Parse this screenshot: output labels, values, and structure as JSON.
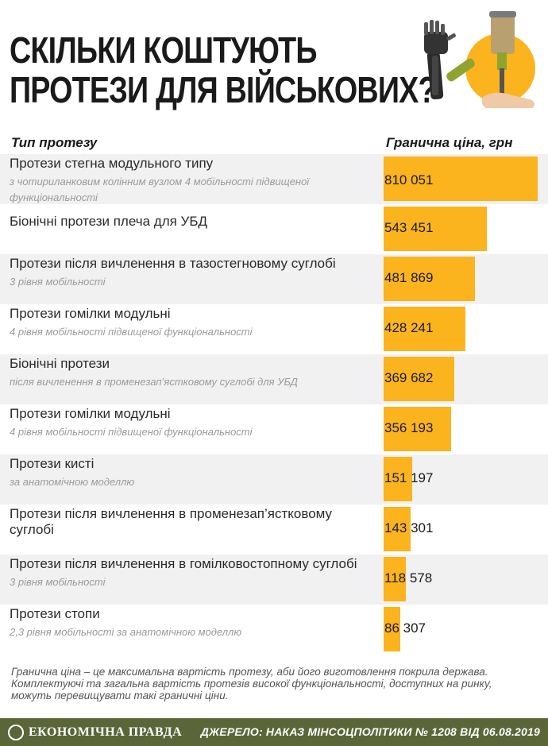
{
  "title_lines": [
    "Скільки коштують",
    "протези для військових?"
  ],
  "table_headers": {
    "type": "Тип протезу",
    "price": "Гранична ціна, грн"
  },
  "colors": {
    "bar": "#fbb41e",
    "footer": "#5a6638",
    "row_shade": "#f1f1f1"
  },
  "chart_data": {
    "type": "bar",
    "orientation": "horizontal",
    "categories": [
      {
        "main": "Протези стегна модульного типу",
        "sub": "з чотириланковим колінним вузлом 4 мобільності підвищеної функціональності"
      },
      {
        "main": "Біонічні протези плеча для УБД",
        "sub": ""
      },
      {
        "main": "Протези після вичленення в тазостегновому суглобі",
        "sub": "3 рівня мобільності"
      },
      {
        "main": "Протези гомілки модульні",
        "sub": "4 рівня мобільності підвищеної функціональності"
      },
      {
        "main": "Біонічні протези",
        "sub": "після вичленення в променезап’ястковому суглобі для УБД"
      },
      {
        "main": "Протези гомілки модульні",
        "sub": "4 рівня мобільності підвищеної функціональності"
      },
      {
        "main": "Протези кисті",
        "sub": "за анатомічною моделлю"
      },
      {
        "main": "Протези після вичленення в променезап’ястковому суглобі",
        "sub": ""
      },
      {
        "main": "Протези після вичленення в гомілковостопному суглобі",
        "sub": "3 рівня мобільності"
      },
      {
        "main": "Протези стопи",
        "sub": "2,3 рівня мобільності за анатомічною моделлю"
      }
    ],
    "values": [
      810051,
      543451,
      481869,
      428241,
      369682,
      356193,
      151197,
      143301,
      118578,
      86307
    ],
    "value_labels": [
      "810 051",
      "543 451",
      "481 869",
      "428 241",
      "369 682",
      "356 193",
      "151 197",
      "143 301",
      "118 578",
      "86 307"
    ],
    "xlim": [
      0,
      810051
    ],
    "ylabel": "Тип протезу",
    "xlabel": "Гранична ціна, грн"
  },
  "note": "Гранична ціна – це максимальна вартість протезу, аби його виготовлення покрила держава. Комплектуючі та загальна вартість протезів високої функціональності, доступних на ринку, можуть перевищувати такі граничні ціни.",
  "footer": {
    "logo_text": "ЕКОНОМІЧНА ПРАВДА",
    "logo_icon": "ep-logo-icon",
    "source": "ДЖЕРЕЛО: НАКАЗ МІНСОЦПОЛІТИКИ № 1208 ВІД 06.08.2019"
  }
}
